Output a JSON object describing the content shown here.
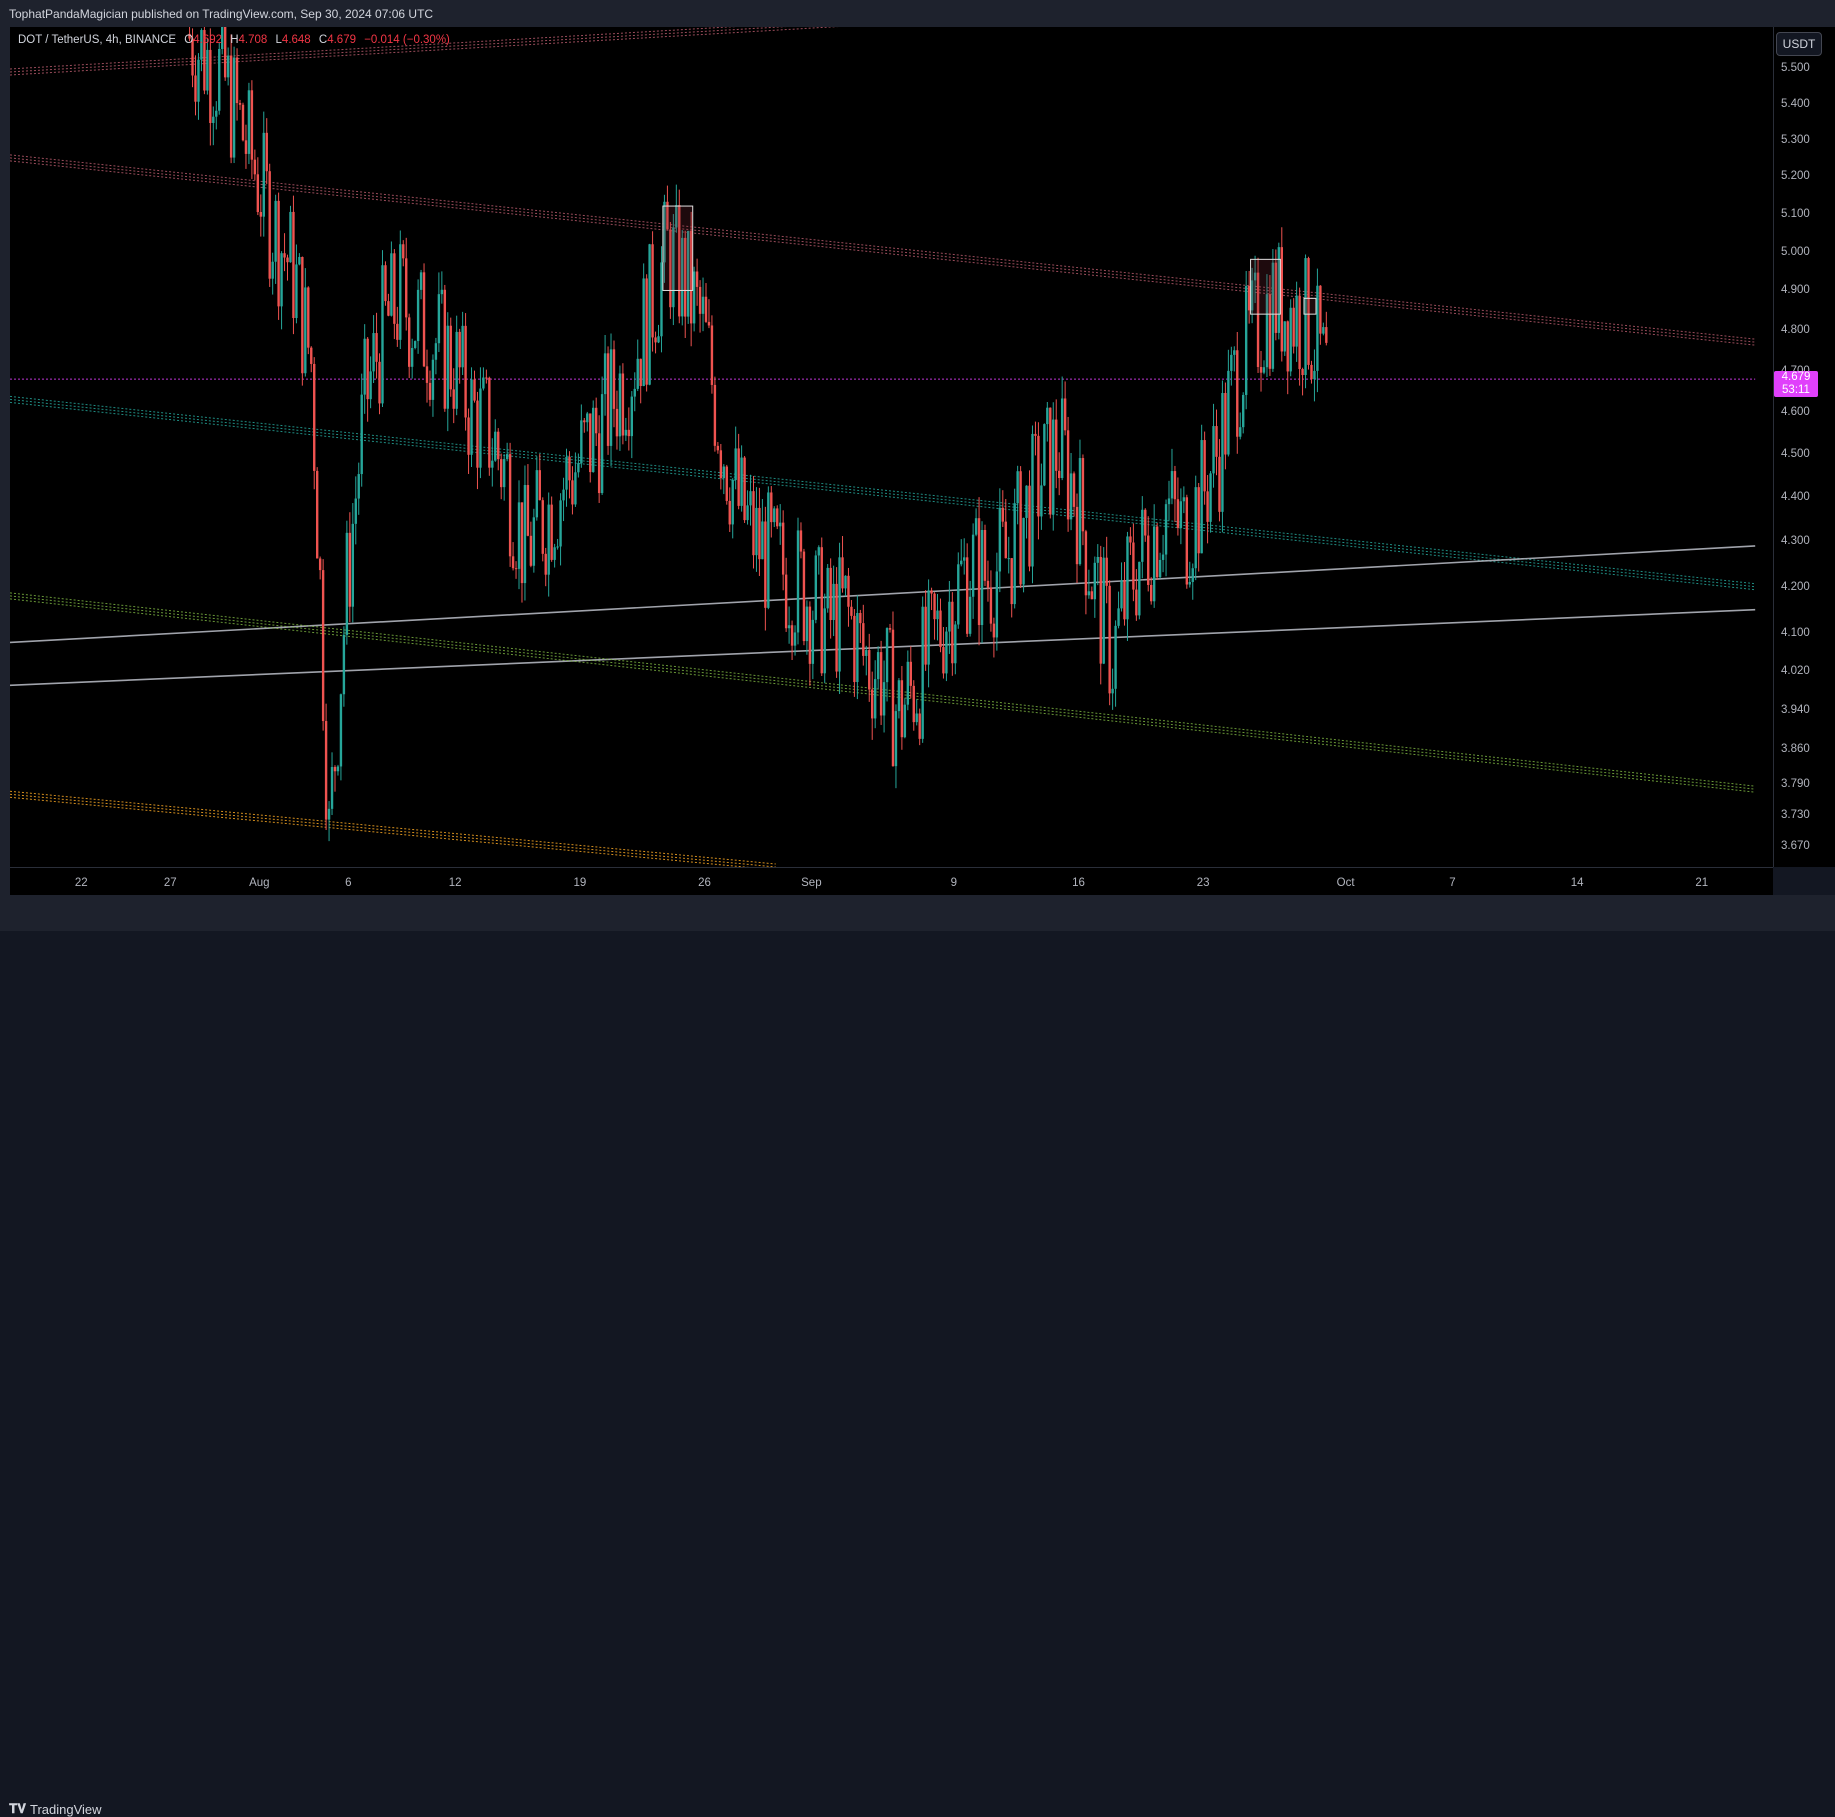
{
  "header": {
    "published_by": "TophatPandaMagician published on TradingView.com, Sep 30, 2024 07:06 UTC"
  },
  "legend": {
    "symbol": "DOT / TetherUS, 4h, BINANCE",
    "o_label": "O",
    "o_value": "4.692",
    "h_label": "H",
    "h_value": "4.708",
    "l_label": "L",
    "l_value": "4.648",
    "c_label": "C",
    "c_value": "4.679",
    "change": "−0.014 (−0.30%)"
  },
  "price_scale": {
    "unit": "USDT",
    "ticks": [
      "5.500",
      "5.400",
      "5.300",
      "5.200",
      "5.100",
      "5.000",
      "4.900",
      "4.800",
      "4.700",
      "4.600",
      "4.500",
      "4.400",
      "4.300",
      "4.200",
      "4.100",
      "4.020",
      "3.940",
      "3.860",
      "3.790",
      "3.730",
      "3.670"
    ],
    "current_price": "4.679",
    "countdown": "53:11"
  },
  "time_axis": {
    "labels": [
      "22",
      "27",
      "Aug",
      "6",
      "12",
      "19",
      "26",
      "Sep",
      "9",
      "16",
      "23",
      "Oct",
      "7",
      "14",
      "21"
    ]
  },
  "footer": {
    "brand": "TradingView"
  },
  "colors": {
    "bull": "#26a69a",
    "bear": "#ef5350",
    "current_price": "#e040fb"
  },
  "chart_data": {
    "type": "candlestick",
    "title": "DOT / TetherUS, 4h, BINANCE",
    "y_scale": "log",
    "ylim": [
      3.63,
      5.62
    ],
    "x_range": [
      "2024-07-18",
      "2024-10-25"
    ],
    "current_price": 4.679,
    "price_path": [
      [
        "2024-07-28",
        5.6
      ],
      [
        "2024-07-30",
        5.48
      ],
      [
        "2024-08-01",
        5.2
      ],
      [
        "2024-08-02",
        5.05
      ],
      [
        "2024-08-03",
        4.95
      ],
      [
        "2024-08-04",
        4.72
      ],
      [
        "2024-08-05",
        3.68
      ],
      [
        "2024-08-06",
        4.2
      ],
      [
        "2024-08-07",
        4.62
      ],
      [
        "2024-08-08",
        4.8
      ],
      [
        "2024-08-09",
        4.88
      ],
      [
        "2024-08-10",
        4.82
      ],
      [
        "2024-08-12",
        4.72
      ],
      [
        "2024-08-13",
        4.6
      ],
      [
        "2024-08-14",
        4.55
      ],
      [
        "2024-08-15",
        4.45
      ],
      [
        "2024-08-16",
        4.28
      ],
      [
        "2024-08-17",
        4.35
      ],
      [
        "2024-08-18",
        4.42
      ],
      [
        "2024-08-19",
        4.48
      ],
      [
        "2024-08-20",
        4.55
      ],
      [
        "2024-08-22",
        4.72
      ],
      [
        "2024-08-23",
        4.85
      ],
      [
        "2024-08-24",
        5.0
      ],
      [
        "2024-08-25",
        4.92
      ],
      [
        "2024-08-26",
        4.8
      ],
      [
        "2024-08-27",
        4.55
      ],
      [
        "2024-08-28",
        4.38
      ],
      [
        "2024-08-29",
        4.3
      ],
      [
        "2024-08-30",
        4.25
      ],
      [
        "2024-08-31",
        4.22
      ],
      [
        "2024-09-01",
        4.18
      ],
      [
        "2024-09-02",
        4.12
      ],
      [
        "2024-09-03",
        4.15
      ],
      [
        "2024-09-04",
        4.05
      ],
      [
        "2024-09-05",
        4.02
      ],
      [
        "2024-09-06",
        3.93
      ],
      [
        "2024-09-07",
        4.0
      ],
      [
        "2024-09-08",
        4.08
      ],
      [
        "2024-09-09",
        4.18
      ],
      [
        "2024-09-10",
        4.25
      ],
      [
        "2024-09-11",
        4.22
      ],
      [
        "2024-09-12",
        4.26
      ],
      [
        "2024-09-13",
        4.35
      ],
      [
        "2024-09-14",
        4.45
      ],
      [
        "2024-09-15",
        4.52
      ],
      [
        "2024-09-16",
        4.4
      ],
      [
        "2024-09-17",
        4.2
      ],
      [
        "2024-09-18",
        4.05
      ],
      [
        "2024-09-19",
        4.22
      ],
      [
        "2024-09-20",
        4.3
      ],
      [
        "2024-09-21",
        4.38
      ],
      [
        "2024-09-22",
        4.32
      ],
      [
        "2024-09-23",
        4.4
      ],
      [
        "2024-09-24",
        4.52
      ],
      [
        "2024-09-25",
        4.7
      ],
      [
        "2024-09-26",
        4.8
      ],
      [
        "2024-09-27",
        4.88
      ],
      [
        "2024-09-28",
        4.85
      ],
      [
        "2024-09-29",
        4.82
      ],
      [
        "2024-09-30",
        4.68
      ]
    ],
    "annotations": [
      {
        "type": "rectangle",
        "from": "2024-08-24",
        "to": "2024-08-25",
        "top": 5.12,
        "bottom": 4.9
      },
      {
        "type": "rectangle",
        "from": "2024-09-26",
        "to": "2024-09-27",
        "top": 4.98,
        "bottom": 4.84
      },
      {
        "type": "rectangle",
        "from": "2024-09-29",
        "to": "2024-09-29",
        "top": 4.88,
        "bottom": 4.84
      }
    ],
    "trendlines": [
      {
        "style": "dotted",
        "color": "#b55a6b",
        "start": [
          "2024-07-18",
          5.49
        ],
        "end": [
          "2024-09-09",
          5.65
        ]
      },
      {
        "style": "dotted",
        "color": "#b55a6b",
        "start": [
          "2024-07-18",
          5.25
        ],
        "end": [
          "2024-10-24",
          4.77
        ]
      },
      {
        "style": "dotted",
        "color": "#26a69a",
        "start": [
          "2024-07-18",
          4.63
        ],
        "end": [
          "2024-10-24",
          4.2
        ]
      },
      {
        "style": "solid",
        "color": "#b2b5be",
        "start": [
          "2024-07-18",
          4.08
        ],
        "end": [
          "2024-10-24",
          4.29
        ]
      },
      {
        "style": "solid",
        "color": "#b2b5be",
        "start": [
          "2024-07-18",
          3.99
        ],
        "end": [
          "2024-10-24",
          4.15
        ]
      },
      {
        "style": "dotted",
        "color": "#7cb342",
        "start": [
          "2024-07-18",
          4.18
        ],
        "end": [
          "2024-10-24",
          3.78
        ]
      },
      {
        "style": "dotted",
        "color": "#f9a825",
        "start": [
          "2024-07-18",
          3.77
        ],
        "end": [
          "2024-08-30",
          3.63
        ]
      },
      {
        "style": "dotted",
        "color": "#e040fb",
        "start": [
          "2024-07-18",
          4.679
        ],
        "end": [
          "2024-10-24",
          4.679
        ]
      }
    ]
  }
}
